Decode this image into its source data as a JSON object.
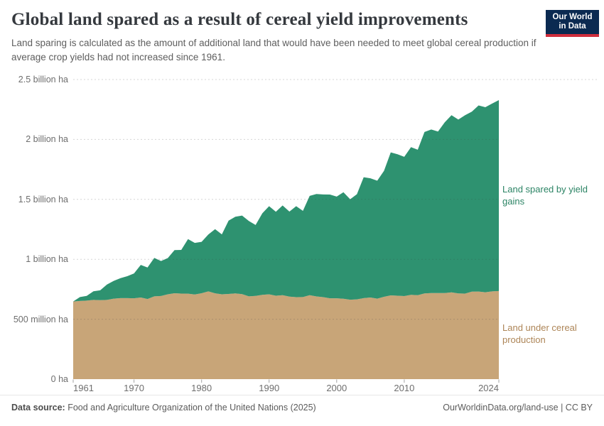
{
  "header": {
    "title": "Global land spared as a result of cereal yield improvements",
    "subtitle": "Land sparing is calculated as the amount of additional land that would have been needed to meet global cereal production if average crop yields had not increased since 1961.",
    "logo": {
      "line1": "Our World",
      "line2": "in Data",
      "bg_color": "#0b2a51",
      "bar_color": "#d02e3d"
    }
  },
  "footer": {
    "source_label": "Data source:",
    "source_text": " Food and Agriculture Organization of the United Nations (2025)",
    "rights": "OurWorldinData.org/land-use | CC BY"
  },
  "chart_data": {
    "type": "area",
    "stacked": true,
    "title": "Global land spared as a result of cereal yield improvements",
    "unit": "million hectares",
    "x_start": 1961,
    "x_end": 2024,
    "grid": "dashed horizontal gridlines, no vertical grid",
    "legend_position": "right margin, inline colored labels",
    "ylim_million_ha": [
      0,
      2500
    ],
    "years": [
      1961,
      1962,
      1963,
      1964,
      1965,
      1966,
      1967,
      1968,
      1969,
      1970,
      1971,
      1972,
      1973,
      1974,
      1975,
      1976,
      1977,
      1978,
      1979,
      1980,
      1981,
      1982,
      1983,
      1984,
      1985,
      1986,
      1987,
      1988,
      1989,
      1990,
      1991,
      1992,
      1993,
      1994,
      1995,
      1996,
      1997,
      1998,
      1999,
      2000,
      2001,
      2002,
      2003,
      2004,
      2005,
      2006,
      2007,
      2008,
      2009,
      2010,
      2011,
      2012,
      2013,
      2014,
      2015,
      2016,
      2017,
      2018,
      2019,
      2020,
      2021,
      2022,
      2023,
      2024
    ],
    "series": [
      {
        "name": "Land under cereal production",
        "color": "#c8a578",
        "label_color": "#ad8557",
        "values_million_ha": [
          648,
          652,
          655,
          661,
          659,
          661,
          672,
          676,
          676,
          675,
          681,
          669,
          691,
          694,
          708,
          717,
          714,
          713,
          706,
          717,
          732,
          716,
          708,
          711,
          715,
          710,
          691,
          695,
          704,
          708,
          696,
          700,
          689,
          684,
          685,
          701,
          690,
          684,
          675,
          675,
          671,
          663,
          666,
          676,
          681,
          672,
          687,
          699,
          696,
          693,
          703,
          700,
          715,
          718,
          718,
          718,
          724,
          715,
          714,
          730,
          731,
          725,
          732,
          735
        ]
      },
      {
        "name": "Land spared by yield gains",
        "color": "#2e9270",
        "label_color": "#2c8465",
        "values_million_ha": [
          0,
          33,
          40,
          72,
          82,
          128,
          148,
          167,
          183,
          207,
          272,
          262,
          320,
          292,
          302,
          360,
          364,
          456,
          431,
          429,
          475,
          535,
          500,
          612,
          640,
          655,
          629,
          591,
          680,
          735,
          701,
          749,
          709,
          759,
          719,
          828,
          855,
          857,
          865,
          848,
          889,
          838,
          877,
          1009,
          995,
          984,
          1051,
          1193,
          1181,
          1162,
          1233,
          1214,
          1347,
          1365,
          1348,
          1425,
          1478,
          1451,
          1488,
          1502,
          1553,
          1544,
          1567,
          1593
        ]
      }
    ],
    "yticks": [
      {
        "value": 0,
        "label": "0 ha"
      },
      {
        "value": 500,
        "label": "500 million ha"
      },
      {
        "value": 1000,
        "label": "1 billion ha"
      },
      {
        "value": 1500,
        "label": "1.5 billion ha"
      },
      {
        "value": 2000,
        "label": "2 billion ha"
      },
      {
        "value": 2500,
        "label": "2.5 billion ha"
      }
    ],
    "xticks": [
      {
        "value": 1961,
        "label": "1961"
      },
      {
        "value": 1970,
        "label": "1970"
      },
      {
        "value": 1980,
        "label": "1980"
      },
      {
        "value": 1990,
        "label": "1990"
      },
      {
        "value": 2000,
        "label": "2000"
      },
      {
        "value": 2010,
        "label": "2010"
      },
      {
        "value": 2024,
        "label": "2024"
      }
    ]
  }
}
